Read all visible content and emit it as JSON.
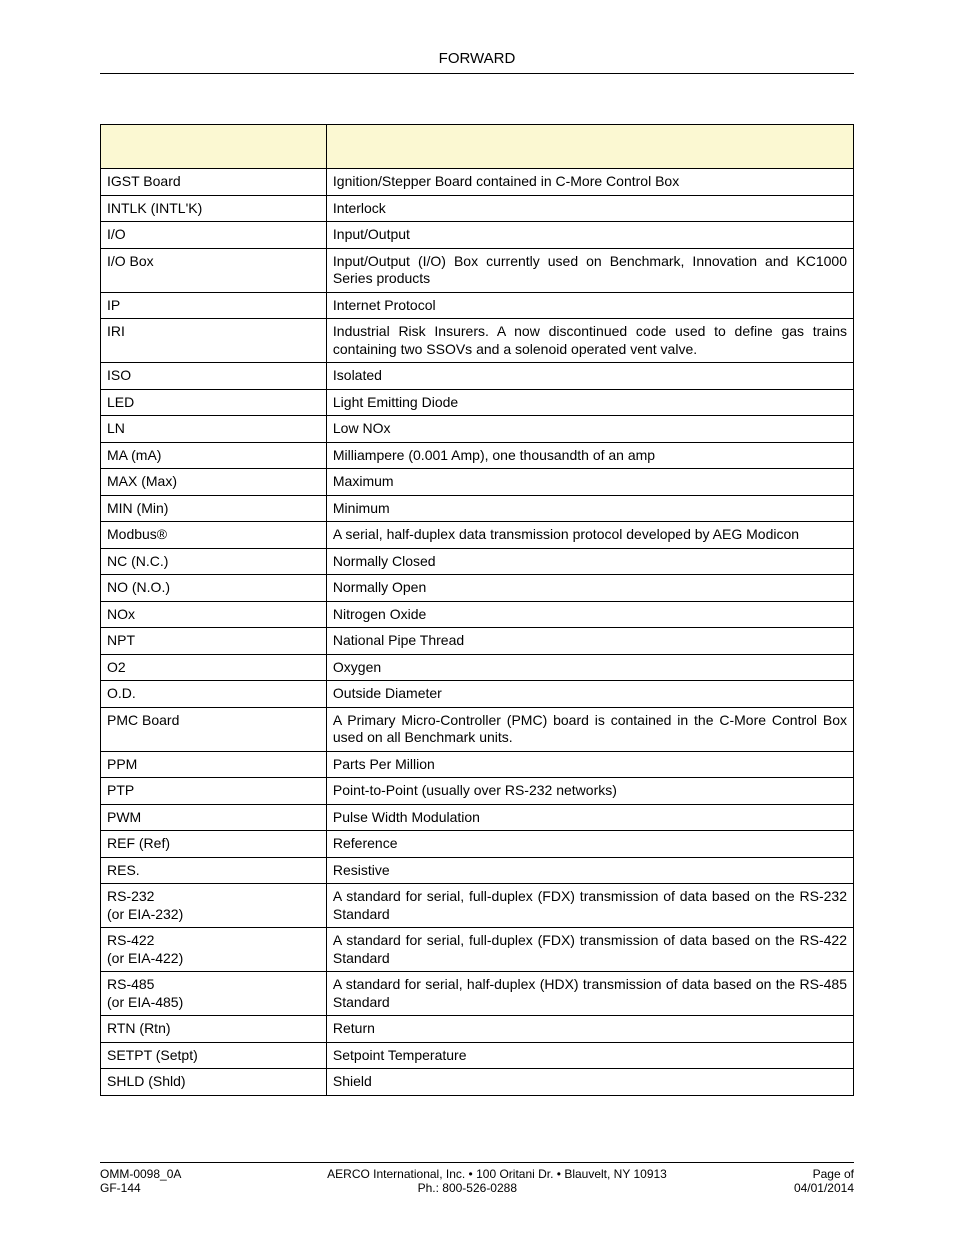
{
  "header": {
    "title": "FORWARD"
  },
  "table": {
    "col_widths": [
      "30%",
      "70%"
    ],
    "header_bg": "#fbf8d2",
    "border_color": "#000000",
    "rows": [
      {
        "term": "IGST Board",
        "def": "Ignition/Stepper Board contained in C-More Control Box",
        "justify": false
      },
      {
        "term": "INTLK (INTL'K)",
        "def": "Interlock",
        "justify": false
      },
      {
        "term": "I/O",
        "def": "Input/Output",
        "justify": false
      },
      {
        "term": "I/O Box",
        "def": "Input/Output (I/O) Box currently used on Benchmark, Innovation and KC1000 Series products",
        "justify": true
      },
      {
        "term": "IP",
        "def": "Internet Protocol",
        "justify": false
      },
      {
        "term": "IRI",
        "def": "Industrial Risk Insurers. A now discontinued code used to define gas trains containing two SSOVs and a solenoid operated vent valve.",
        "justify": true
      },
      {
        "term": "ISO",
        "def": "Isolated",
        "justify": false
      },
      {
        "term": "LED",
        "def": "Light Emitting Diode",
        "justify": false
      },
      {
        "term": "LN",
        "def": "Low NOx",
        "justify": false
      },
      {
        "term": "MA (mA)",
        "def": "Milliampere (0.001 Amp), one thousandth of an amp",
        "justify": false
      },
      {
        "term": "MAX (Max)",
        "def": "Maximum",
        "justify": false
      },
      {
        "term": "MIN (Min)",
        "def": "Minimum",
        "justify": false
      },
      {
        "term": "Modbus®",
        "def": "A serial, half-duplex data transmission protocol developed by AEG Modicon",
        "justify": true
      },
      {
        "term": "NC (N.C.)",
        "def": "Normally Closed",
        "justify": false
      },
      {
        "term": "NO (N.O.)",
        "def": "Normally Open",
        "justify": false
      },
      {
        "term": "NOx",
        "def": "Nitrogen Oxide",
        "justify": false
      },
      {
        "term": "NPT",
        "def": "National Pipe Thread",
        "justify": false
      },
      {
        "term": "O2",
        "def": "Oxygen",
        "justify": false
      },
      {
        "term": "O.D.",
        "def": "Outside Diameter",
        "justify": false
      },
      {
        "term": "PMC Board",
        "def": "A Primary Micro-Controller (PMC) board is contained in the C-More Control Box used on all Benchmark units.",
        "justify": true
      },
      {
        "term": "PPM",
        "def": "Parts Per Million",
        "justify": false
      },
      {
        "term": "PTP",
        "def": "Point-to-Point (usually over RS-232 networks)",
        "justify": false
      },
      {
        "term": "PWM",
        "def": "Pulse Width Modulation",
        "justify": false
      },
      {
        "term": "REF (Ref)",
        "def": "Reference",
        "justify": false
      },
      {
        "term": "RES.",
        "def": "Resistive",
        "justify": false
      },
      {
        "term": "RS-232\n(or EIA-232)",
        "def": "A standard for serial, full-duplex (FDX) transmission of data based on the RS-232 Standard",
        "justify": true
      },
      {
        "term": "RS-422\n(or EIA-422)",
        "def": "A standard for serial, full-duplex (FDX) transmission of data based on the RS-422 Standard",
        "justify": true
      },
      {
        "term": "RS-485\n(or EIA-485)",
        "def": "A standard for serial, half-duplex (HDX) transmission of data based on the RS-485 Standard",
        "justify": true
      },
      {
        "term": "RTN (Rtn)",
        "def": "Return",
        "justify": false
      },
      {
        "term": "SETPT (Setpt)",
        "def": "Setpoint Temperature",
        "justify": false
      },
      {
        "term": "SHLD (Shld)",
        "def": "Shield",
        "justify": false
      }
    ]
  },
  "footer": {
    "left1": "OMM-0098_0A",
    "left2": "GF-144",
    "center1": "AERCO International, Inc. • 100 Oritani Dr. •  Blauvelt, NY 10913",
    "center2": "Ph.: 800-526-0288",
    "right1": "Page   of",
    "right2": "04/01/2014"
  }
}
